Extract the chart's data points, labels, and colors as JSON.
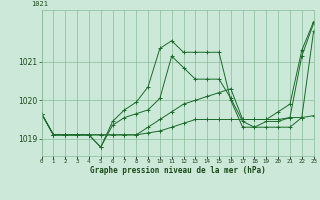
{
  "xlabel": "Graphe pression niveau de la mer (hPa)",
  "background_color": "#cce8d8",
  "grid_color": "#88bb99",
  "line_color": "#1a6b2a",
  "hours": [
    0,
    1,
    2,
    3,
    4,
    5,
    6,
    7,
    8,
    9,
    10,
    11,
    12,
    13,
    14,
    15,
    16,
    17,
    18,
    19,
    20,
    21,
    22,
    23
  ],
  "series": [
    [
      1019.65,
      1019.1,
      1019.1,
      1019.1,
      1019.1,
      1018.78,
      1019.35,
      1019.55,
      1019.65,
      1019.75,
      1020.05,
      1021.15,
      1020.85,
      1020.55,
      1020.55,
      1020.55,
      1020.05,
      1019.45,
      1019.3,
      1019.3,
      1019.3,
      1019.3,
      1019.55,
      1021.8
    ],
    [
      1019.65,
      1019.1,
      1019.1,
      1019.1,
      1019.1,
      1018.78,
      1019.45,
      1019.75,
      1019.95,
      1020.35,
      1021.35,
      1021.55,
      1021.25,
      1021.25,
      1021.25,
      1021.25,
      1020.0,
      1019.3,
      1019.3,
      1019.45,
      1019.45,
      1019.55,
      1021.15,
      1022.0
    ],
    [
      1019.65,
      1019.1,
      1019.1,
      1019.1,
      1019.1,
      1019.1,
      1019.1,
      1019.1,
      1019.1,
      1019.3,
      1019.5,
      1019.7,
      1019.9,
      1020.0,
      1020.1,
      1020.2,
      1020.3,
      1019.5,
      1019.5,
      1019.5,
      1019.7,
      1019.9,
      1021.3,
      1022.05
    ],
    [
      1019.65,
      1019.1,
      1019.1,
      1019.1,
      1019.1,
      1019.1,
      1019.1,
      1019.1,
      1019.1,
      1019.15,
      1019.2,
      1019.3,
      1019.4,
      1019.5,
      1019.5,
      1019.5,
      1019.5,
      1019.5,
      1019.5,
      1019.5,
      1019.5,
      1019.55,
      1019.55,
      1019.6
    ]
  ],
  "ylim_min": 1018.55,
  "ylim_max": 1022.35,
  "yticks": [
    1019,
    1020,
    1021
  ],
  "xlim_min": 0,
  "xlim_max": 23,
  "top_label": "1021"
}
